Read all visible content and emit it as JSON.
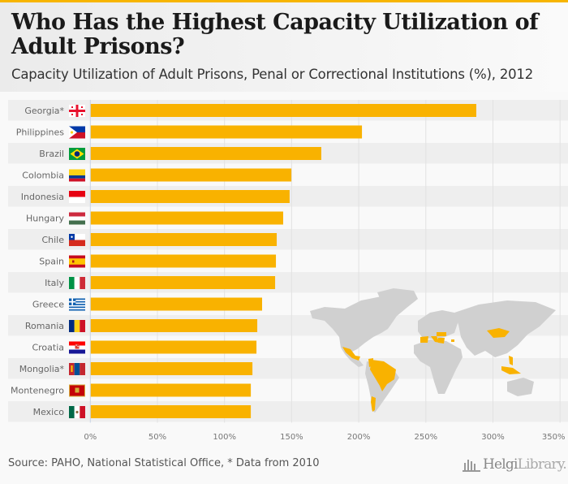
{
  "header": {
    "title": "Who Has the Highest Capacity Utilization of Adult Prisons?",
    "subtitle": "Capacity Utilization of Adult Prisons, Penal or Correctional Institutions (%), 2012"
  },
  "footer": {
    "source": "Source: PAHO, National Statistical Office, * Data from 2010",
    "logo_main": "Helgi",
    "logo_sub": "Library."
  },
  "colors": {
    "bar": "#f9b200",
    "map_land": "#d0d0d0",
    "map_highlight": "#f9b200",
    "accent": "#f7b500"
  },
  "chart_data": {
    "type": "bar",
    "orientation": "horizontal",
    "title": "Who Has the Highest Capacity Utilization of Adult Prisons?",
    "subtitle": "Capacity Utilization of Adult Prisons, Penal or Correctional Institutions (%), 2012",
    "xlabel": "",
    "ylabel": "",
    "xlim": [
      0,
      350
    ],
    "xticks": [
      0,
      50,
      100,
      150,
      200,
      250,
      300,
      350
    ],
    "xtick_labels": [
      "0%",
      "50%",
      "100%",
      "150%",
      "200%",
      "250%",
      "300%",
      "350%"
    ],
    "grid": true,
    "categories": [
      "Georgia*",
      "Philippines",
      "Brazil",
      "Colombia",
      "Indonesia",
      "Hungary",
      "Chile",
      "Spain",
      "Italy",
      "Greece",
      "Romania",
      "Croatia",
      "Mongolia*",
      "Montenegro",
      "Mexico"
    ],
    "values": [
      287.6,
      202.4,
      172.1,
      149.8,
      148.5,
      143.7,
      138.9,
      138.3,
      137.7,
      128.0,
      124.4,
      123.8,
      120.8,
      119.6,
      119.6
    ],
    "flags": [
      "georgia-flag",
      "philippines-flag",
      "brazil-flag",
      "colombia-flag",
      "indonesia-flag",
      "hungary-flag",
      "chile-flag",
      "spain-flag",
      "italy-flag",
      "greece-flag",
      "romania-flag",
      "croatia-flag",
      "mongolia-flag",
      "montenegro-flag",
      "mexico-flag"
    ]
  }
}
